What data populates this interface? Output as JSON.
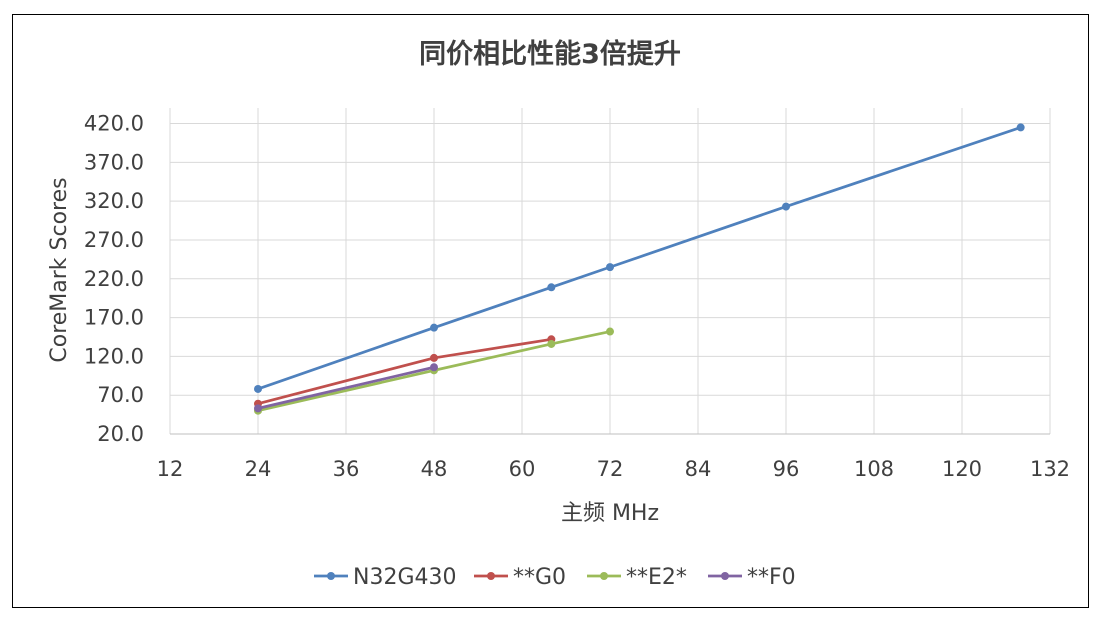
{
  "chart_data": {
    "type": "scatter",
    "title": "同价相比性能3倍提升",
    "xlabel": "主频 MHz",
    "ylabel": "CoreMark Scores",
    "xlim": [
      12,
      132
    ],
    "ylim": [
      20,
      440
    ],
    "xticks": [
      "12",
      "24",
      "36",
      "48",
      "60",
      "72",
      "84",
      "96",
      "108",
      "120",
      "132"
    ],
    "yticks": [
      "20.0",
      "70.0",
      "120.0",
      "170.0",
      "220.0",
      "270.0",
      "320.0",
      "370.0",
      "420.0"
    ],
    "grid": true,
    "legend_position": "bottom",
    "series": [
      {
        "name": "N32G430",
        "color": "#4F81BD",
        "points": [
          [
            24,
            78
          ],
          [
            48,
            157
          ],
          [
            64,
            209
          ],
          [
            72,
            235
          ],
          [
            96,
            313
          ],
          [
            128,
            415
          ]
        ]
      },
      {
        "name": "**G0",
        "color": "#C0504D",
        "points": [
          [
            24,
            59
          ],
          [
            48,
            118
          ],
          [
            64,
            142
          ]
        ]
      },
      {
        "name": "**E2*",
        "color": "#9BBB59",
        "points": [
          [
            24,
            50
          ],
          [
            48,
            102
          ],
          [
            64,
            136
          ],
          [
            72,
            152
          ]
        ]
      },
      {
        "name": "**F0",
        "color": "#8064A2",
        "points": [
          [
            24,
            53
          ],
          [
            48,
            106
          ]
        ]
      }
    ]
  }
}
